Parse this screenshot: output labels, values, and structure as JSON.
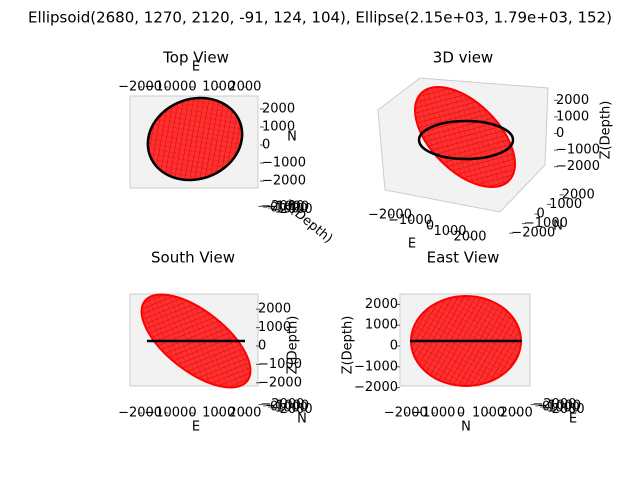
{
  "chart_data": [
    {
      "type": "ellipsoid-3d",
      "suptitle": "Ellipsoid(2680, 1270, 2120, -91, 124, 104), Ellipse(2.15e+03, 1.79e+03, 152)",
      "title": "Top View",
      "xlabel": "E",
      "ylabel": "N",
      "zlabel": "Z(Depth)",
      "xlim": [
        -2500,
        2500
      ],
      "ylim": [
        -2500,
        2500
      ],
      "zlim": [
        -2500,
        2500
      ],
      "xticks": [
        {
          "value": -2000,
          "label": "−2000"
        },
        {
          "value": -1000,
          "label": "−1000"
        },
        0,
        1000,
        2000
      ],
      "yticks": [
        {
          "value": -2000,
          "label": "−2000"
        },
        {
          "value": -1000,
          "label": "−1000"
        },
        0,
        1000,
        2000
      ],
      "zticks": [
        {
          "value": -2000,
          "label": "−2000"
        },
        {
          "value": -1000,
          "label": "−1000"
        },
        0,
        1000,
        2000
      ]
    },
    {
      "type": "ellipsoid-3d",
      "title": "3D view",
      "xlabel": "E",
      "ylabel": "N",
      "zlabel": "Z(Depth)",
      "xlim": [
        -2500,
        2500
      ],
      "ylim": [
        -2500,
        2500
      ],
      "zlim": [
        -2500,
        2500
      ],
      "xticks": [
        {
          "value": -2000,
          "label": "−2000"
        },
        {
          "value": -1000,
          "label": "−1000"
        },
        0,
        1000,
        2000
      ],
      "yticks": [
        {
          "value": -2000,
          "label": "−2000"
        },
        {
          "value": -1000,
          "label": "−1000"
        },
        0,
        1000,
        2000
      ],
      "zticks": [
        {
          "value": -2000,
          "label": "−2000"
        },
        {
          "value": -1000,
          "label": "−1000"
        },
        0,
        1000,
        2000
      ]
    },
    {
      "type": "ellipsoid-3d",
      "title": "South View",
      "xlabel": "E",
      "ylabel": "N",
      "zlabel": "Z(Depth)",
      "xlim": [
        -2500,
        2500
      ],
      "ylim": [
        -2500,
        2500
      ],
      "zlim": [
        -2500,
        2500
      ],
      "xticks": [
        {
          "value": -2000,
          "label": "−2000"
        },
        {
          "value": -1000,
          "label": "−1000"
        },
        0,
        1000,
        2000
      ],
      "yticks": [
        {
          "value": -2000,
          "label": "−2000"
        },
        {
          "value": -1000,
          "label": "−1000"
        },
        0,
        1000,
        2000
      ],
      "zticks": [
        {
          "value": -2000,
          "label": "−2000"
        },
        {
          "value": -1000,
          "label": "−1000"
        },
        0,
        1000,
        2000
      ]
    },
    {
      "type": "ellipsoid-3d",
      "title": "East View",
      "xlabel": "E",
      "ylabel": "N",
      "zlabel": "Z(Depth)",
      "xlim": [
        -2500,
        2500
      ],
      "ylim": [
        -2500,
        2500
      ],
      "zlim": [
        -2500,
        2500
      ],
      "xticks": [
        {
          "value": -2000,
          "label": "−2000"
        },
        {
          "value": -1000,
          "label": "−1000"
        },
        0,
        1000,
        2000
      ],
      "yticks": [
        {
          "value": -2000,
          "label": "−2000"
        },
        {
          "value": -1000,
          "label": "−1000"
        },
        0,
        1000,
        2000
      ],
      "zticks": [
        {
          "value": -2000,
          "label": "−2000"
        },
        {
          "value": -1000,
          "label": "−1000"
        },
        0,
        1000,
        2000
      ]
    }
  ]
}
